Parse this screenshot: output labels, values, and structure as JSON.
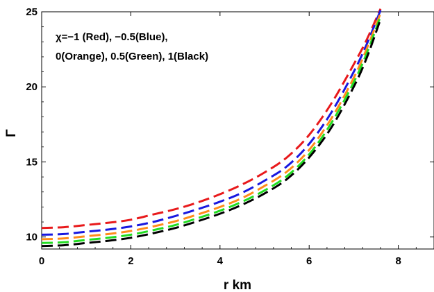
{
  "chart_data": {
    "type": "line",
    "xlabel": "r  km",
    "ylabel": "Γ",
    "xlim": [
      0,
      8.8
    ],
    "ylim": [
      9.2,
      25
    ],
    "x_ticks": [
      "0",
      "2",
      "4",
      "6",
      "8"
    ],
    "y_ticks": [
      "10",
      "15",
      "20",
      "25"
    ],
    "x_tick_values": [
      0,
      2,
      4,
      6,
      8
    ],
    "y_tick_values": [
      10,
      15,
      20,
      25
    ],
    "annotation": {
      "line1": "χ=−1 (Red), −0.5(Blue),",
      "line2": "0(Orange), 0.5(Green), 1(Black)"
    },
    "grid": false,
    "line_style": "dashed",
    "x": [
      0,
      0.5,
      1,
      1.5,
      2,
      2.5,
      3,
      3.5,
      4,
      4.5,
      5,
      5.5,
      6,
      6.5,
      7,
      7.3,
      7.6
    ],
    "series": [
      {
        "color": "#e8191b",
        "values": [
          10.6,
          10.65,
          10.8,
          10.95,
          11.15,
          11.5,
          11.85,
          12.3,
          12.85,
          13.5,
          14.3,
          15.3,
          16.8,
          18.9,
          21.5,
          23.2,
          25.2
        ]
      },
      {
        "color": "#1818e0",
        "values": [
          10.15,
          10.2,
          10.35,
          10.5,
          10.7,
          11.0,
          11.4,
          11.85,
          12.35,
          12.95,
          13.75,
          14.7,
          16.2,
          18.3,
          21.0,
          22.9,
          25.1
        ]
      },
      {
        "color": "#ff8c1a",
        "values": [
          9.85,
          9.9,
          10.05,
          10.2,
          10.4,
          10.7,
          11.05,
          11.5,
          12.0,
          12.6,
          13.4,
          14.35,
          15.8,
          17.9,
          20.6,
          22.6,
          24.9
        ]
      },
      {
        "color": "#22dd22",
        "values": [
          9.6,
          9.65,
          9.8,
          9.95,
          10.15,
          10.45,
          10.8,
          11.25,
          11.75,
          12.35,
          13.1,
          14.05,
          15.5,
          17.6,
          20.3,
          22.3,
          24.7
        ]
      },
      {
        "color": "#000000",
        "values": [
          9.4,
          9.45,
          9.6,
          9.75,
          9.95,
          10.25,
          10.6,
          11.05,
          11.55,
          12.15,
          12.9,
          13.85,
          15.3,
          17.3,
          20.0,
          22.0,
          24.5
        ]
      }
    ]
  }
}
